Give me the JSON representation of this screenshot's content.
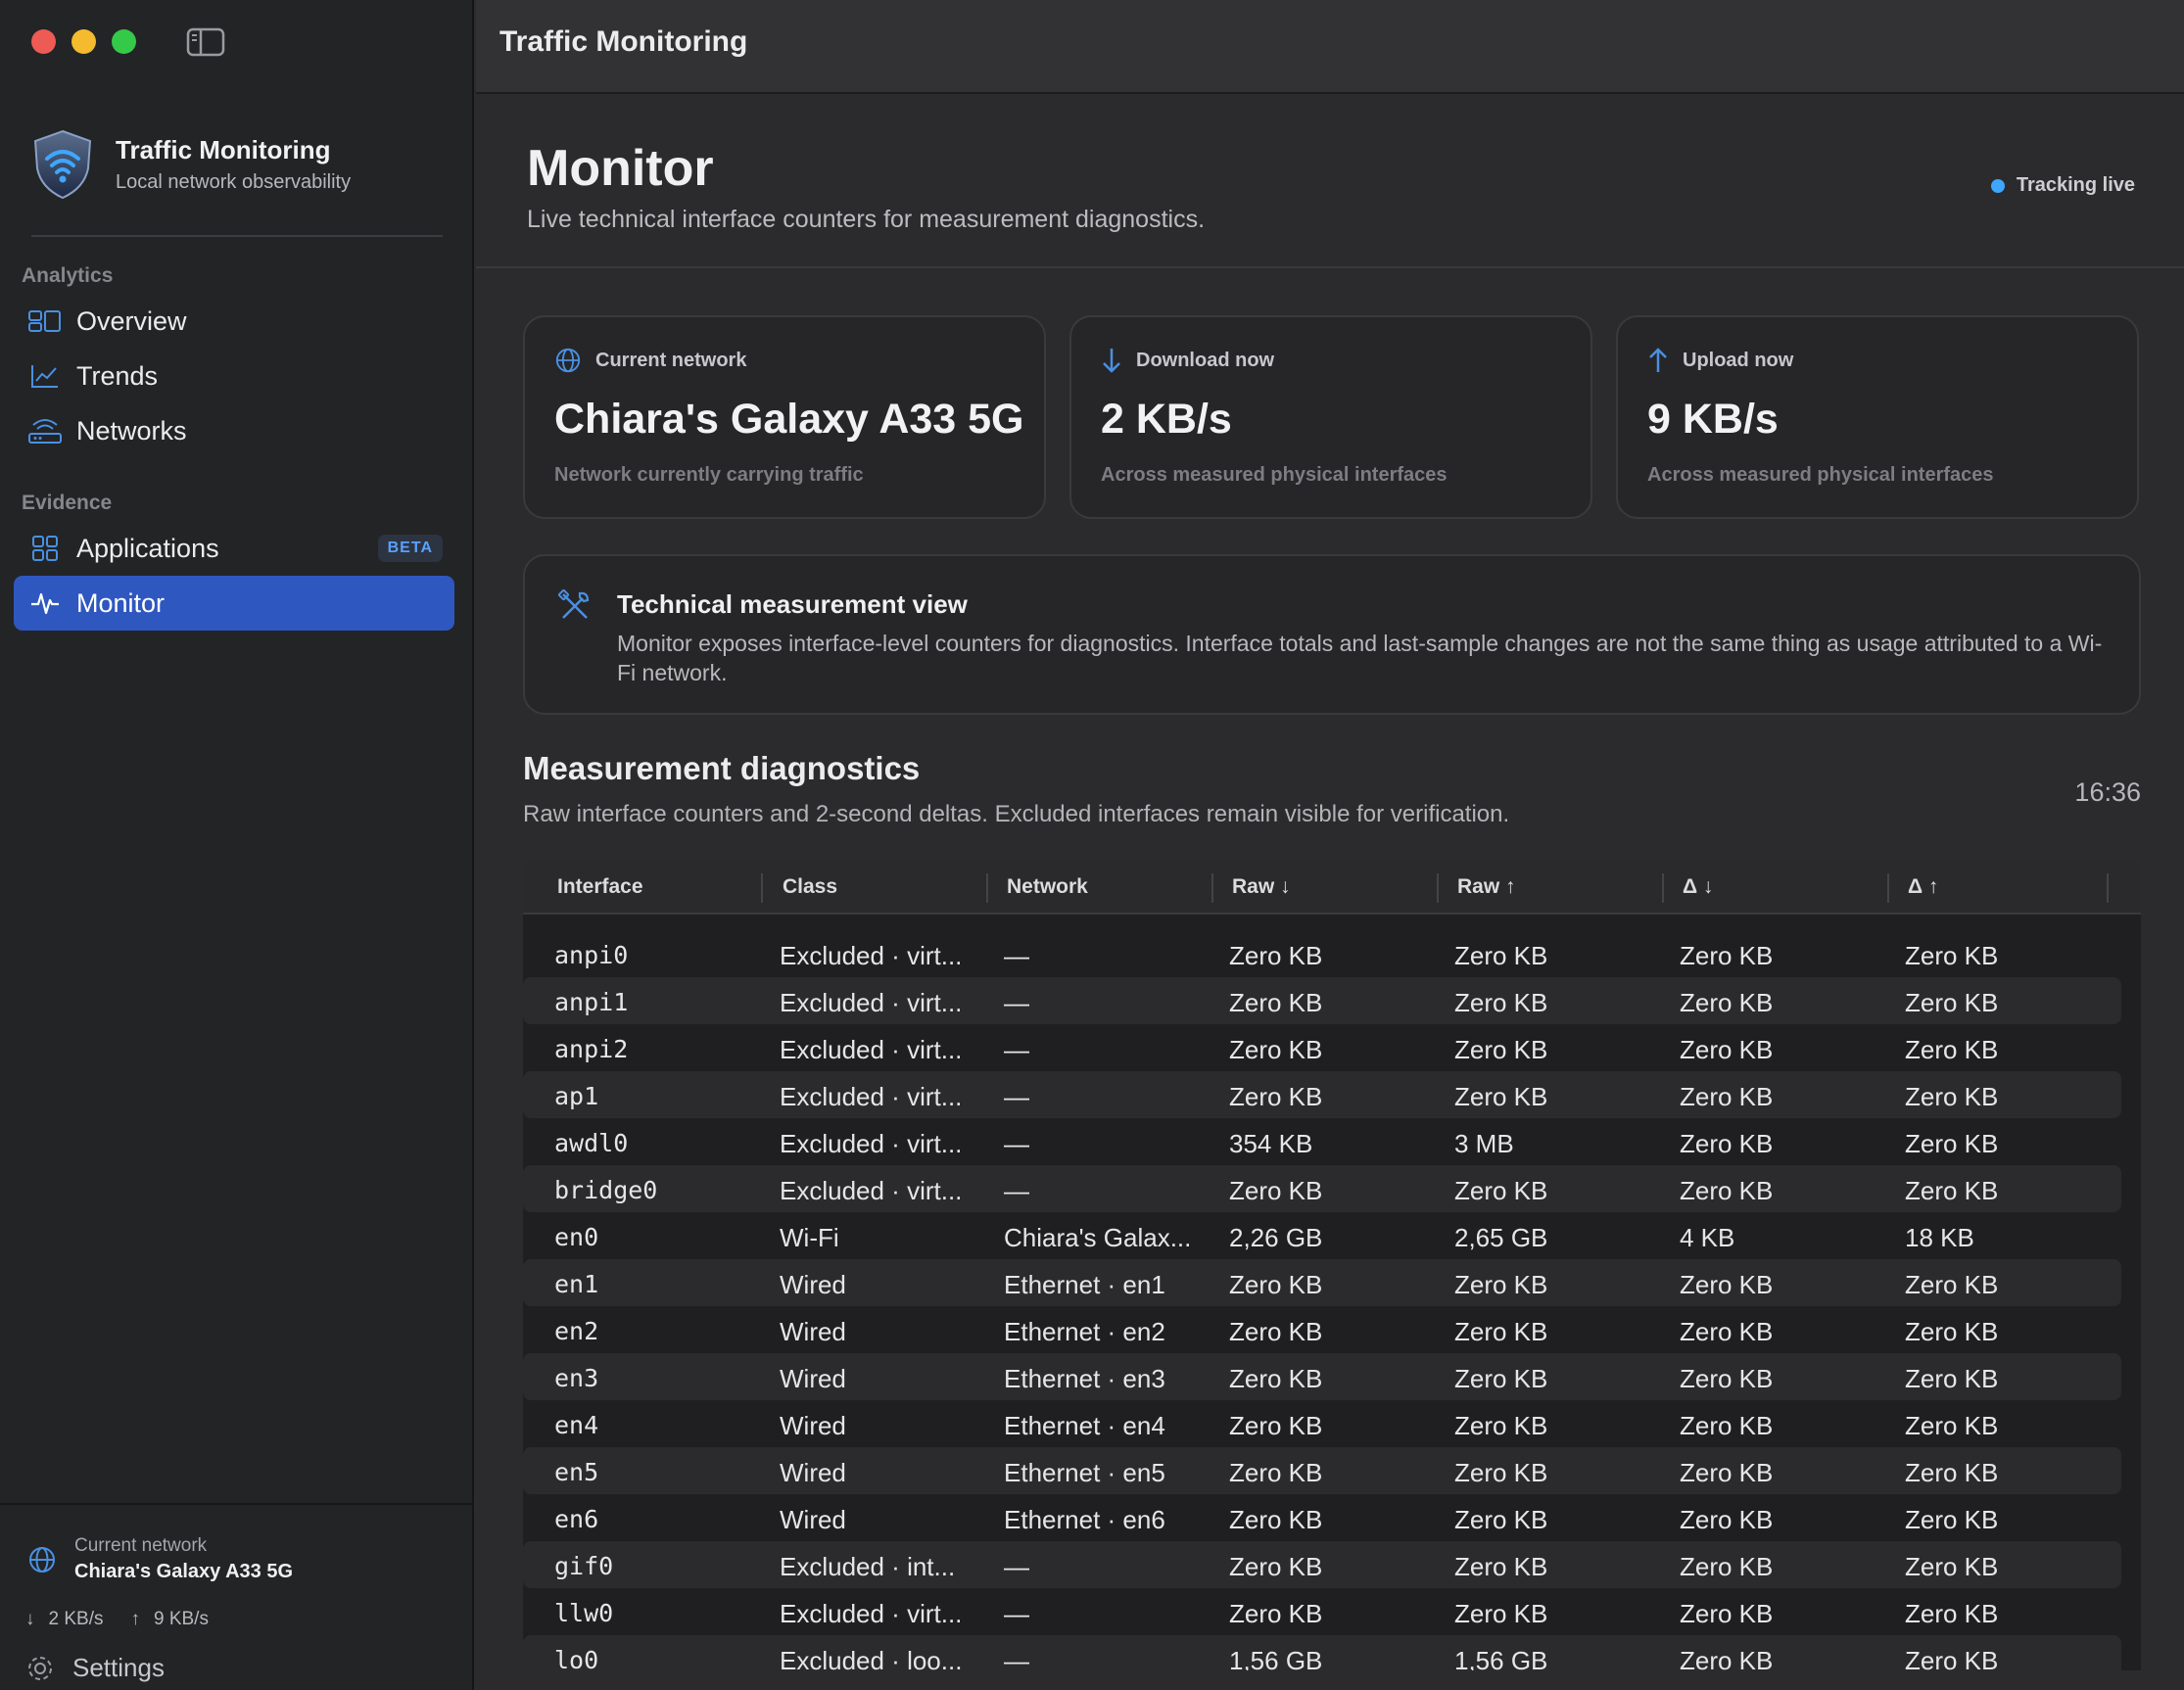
{
  "window": {
    "title": "Traffic Monitoring"
  },
  "brand": {
    "name": "Traffic Monitoring",
    "tagline": "Local network observability"
  },
  "sidebar": {
    "sections": [
      {
        "label": "Analytics"
      },
      {
        "label": "Evidence"
      }
    ],
    "items": [
      {
        "label": "Overview",
        "icon": "overview-icon"
      },
      {
        "label": "Trends",
        "icon": "chart-icon"
      },
      {
        "label": "Networks",
        "icon": "router-icon"
      },
      {
        "label": "Applications",
        "icon": "grid-icon",
        "badge": "BETA"
      },
      {
        "label": "Monitor",
        "icon": "pulse-icon",
        "active": true
      }
    ],
    "footer": {
      "current_network_label": "Current network",
      "current_network_value": "Chiara's Galaxy A33 5G",
      "download": "2 KB/s",
      "upload": "9 KB/s",
      "settings_label": "Settings"
    }
  },
  "header": {
    "title": "Monitor",
    "subtitle": "Live technical interface counters for measurement diagnostics.",
    "status": "Tracking live"
  },
  "cards": [
    {
      "label": "Current network",
      "value": "Chiara's Galaxy A33 5G",
      "note": "Network currently carrying traffic",
      "icon": "globe-icon"
    },
    {
      "label": "Download now",
      "value": "2 KB/s",
      "note": "Across measured physical interfaces",
      "icon": "arrow-down-icon"
    },
    {
      "label": "Upload now",
      "value": "9 KB/s",
      "note": "Across measured physical interfaces",
      "icon": "arrow-up-icon"
    }
  ],
  "info": {
    "title": "Technical measurement view",
    "text": "Monitor exposes interface-level counters for diagnostics. Interface totals and last-sample changes are not the same thing as usage attributed to a Wi-Fi network."
  },
  "diagnostics": {
    "title": "Measurement diagnostics",
    "subtitle": "Raw interface counters and 2-second deltas. Excluded interfaces remain visible for verification.",
    "time": "16:36",
    "columns": [
      "Interface",
      "Class",
      "Network",
      "Raw ↓",
      "Raw ↑",
      "Δ ↓",
      "Δ ↑"
    ],
    "rows": [
      [
        "anpi0",
        "Excluded · virt...",
        "—",
        "Zero KB",
        "Zero KB",
        "Zero KB",
        "Zero KB"
      ],
      [
        "anpi1",
        "Excluded · virt...",
        "—",
        "Zero KB",
        "Zero KB",
        "Zero KB",
        "Zero KB"
      ],
      [
        "anpi2",
        "Excluded · virt...",
        "—",
        "Zero KB",
        "Zero KB",
        "Zero KB",
        "Zero KB"
      ],
      [
        "ap1",
        "Excluded · virt...",
        "—",
        "Zero KB",
        "Zero KB",
        "Zero KB",
        "Zero KB"
      ],
      [
        "awdl0",
        "Excluded · virt...",
        "—",
        "354 KB",
        "3 MB",
        "Zero KB",
        "Zero KB"
      ],
      [
        "bridge0",
        "Excluded · virt...",
        "—",
        "Zero KB",
        "Zero KB",
        "Zero KB",
        "Zero KB"
      ],
      [
        "en0",
        "Wi-Fi",
        "Chiara's Galax...",
        "2,26 GB",
        "2,65 GB",
        "4 KB",
        "18 KB"
      ],
      [
        "en1",
        "Wired",
        "Ethernet · en1",
        "Zero KB",
        "Zero KB",
        "Zero KB",
        "Zero KB"
      ],
      [
        "en2",
        "Wired",
        "Ethernet · en2",
        "Zero KB",
        "Zero KB",
        "Zero KB",
        "Zero KB"
      ],
      [
        "en3",
        "Wired",
        "Ethernet · en3",
        "Zero KB",
        "Zero KB",
        "Zero KB",
        "Zero KB"
      ],
      [
        "en4",
        "Wired",
        "Ethernet · en4",
        "Zero KB",
        "Zero KB",
        "Zero KB",
        "Zero KB"
      ],
      [
        "en5",
        "Wired",
        "Ethernet · en5",
        "Zero KB",
        "Zero KB",
        "Zero KB",
        "Zero KB"
      ],
      [
        "en6",
        "Wired",
        "Ethernet · en6",
        "Zero KB",
        "Zero KB",
        "Zero KB",
        "Zero KB"
      ],
      [
        "gif0",
        "Excluded · int...",
        "—",
        "Zero KB",
        "Zero KB",
        "Zero KB",
        "Zero KB"
      ],
      [
        "llw0",
        "Excluded · virt...",
        "—",
        "Zero KB",
        "Zero KB",
        "Zero KB",
        "Zero KB"
      ],
      [
        "lo0",
        "Excluded · loo...",
        "—",
        "1,56 GB",
        "1,56 GB",
        "Zero KB",
        "Zero KB"
      ]
    ]
  },
  "colors": {
    "accent": "#2f57c0",
    "live": "#3ea6ff",
    "icon": "#4a90e2"
  }
}
